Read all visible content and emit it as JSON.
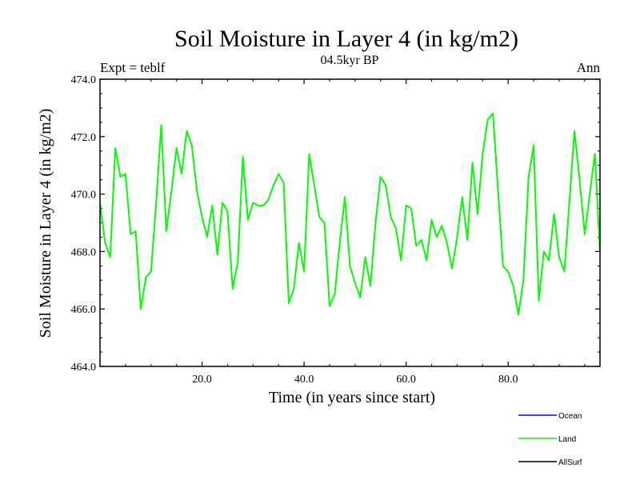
{
  "chart_data": {
    "type": "line",
    "title": "Soil Moisture in Layer 4 (in kg/m2)",
    "subtitle": "04.5kyr BP",
    "left_label": "Expt = teblf",
    "right_label": "Ann",
    "xlabel": "Time (in years since start)",
    "ylabel": "Soil Moisture in Layer 4 (in kg/m2)",
    "xlim": [
      0,
      98
    ],
    "ylim": [
      464.0,
      474.0
    ],
    "x_ticks": [
      20,
      40,
      60,
      80
    ],
    "x_tick_labels": [
      "20.0",
      "40.0",
      "60.0",
      "80.0"
    ],
    "y_ticks": [
      464,
      466,
      468,
      470,
      472,
      474
    ],
    "y_tick_labels": [
      "464.0",
      "466.0",
      "468.0",
      "470.0",
      "472.0",
      "474.0"
    ],
    "legend_placement": "bottom-right",
    "legend": [
      {
        "name": "Ocean",
        "color": "#0000ff"
      },
      {
        "name": "Land",
        "color": "#00ff00"
      },
      {
        "name": "AllSurf",
        "color": "#000000"
      }
    ],
    "series": [
      {
        "name": "Land",
        "color": "#00ff00",
        "x": [
          0,
          1,
          2,
          3,
          4,
          5,
          6,
          7,
          8,
          9,
          10,
          11,
          12,
          13,
          14,
          15,
          16,
          17,
          18,
          19,
          20,
          21,
          22,
          23,
          24,
          25,
          26,
          27,
          28,
          29,
          30,
          31,
          32,
          33,
          34,
          35,
          36,
          37,
          38,
          39,
          40,
          41,
          42,
          43,
          44,
          45,
          46,
          47,
          48,
          49,
          50,
          51,
          52,
          53,
          54,
          55,
          56,
          57,
          58,
          59,
          60,
          61,
          62,
          63,
          64,
          65,
          66,
          67,
          68,
          69,
          70,
          71,
          72,
          73,
          74,
          75,
          76,
          77,
          78,
          79,
          80,
          81,
          82,
          83,
          84,
          85,
          86,
          87,
          88,
          89,
          90,
          91,
          92,
          93,
          94,
          95,
          96,
          97,
          98
        ],
        "values": [
          469.7,
          468.3,
          467.8,
          471.6,
          470.6,
          470.7,
          468.6,
          468.7,
          466.0,
          467.1,
          467.3,
          469.7,
          472.4,
          468.7,
          470.1,
          471.6,
          470.7,
          472.2,
          471.7,
          470.1,
          469.2,
          468.5,
          469.6,
          467.9,
          469.7,
          469.4,
          466.7,
          467.6,
          471.3,
          469.1,
          469.7,
          469.6,
          469.6,
          469.8,
          470.3,
          470.7,
          470.4,
          466.2,
          466.7,
          468.3,
          467.3,
          471.4,
          470.3,
          469.2,
          469.0,
          466.1,
          466.5,
          468.3,
          469.9,
          467.5,
          466.9,
          466.4,
          467.8,
          466.8,
          469.0,
          470.6,
          470.3,
          469.2,
          468.8,
          467.7,
          469.6,
          469.5,
          468.2,
          468.4,
          467.7,
          469.1,
          468.5,
          468.9,
          468.3,
          467.4,
          468.5,
          469.9,
          468.4,
          471.1,
          469.3,
          471.4,
          472.6,
          472.8,
          470.2,
          467.5,
          467.3,
          466.8,
          465.8,
          467.0,
          470.6,
          471.7,
          466.3,
          468.0,
          467.7,
          469.3,
          467.8,
          467.3,
          469.7,
          472.2,
          470.5,
          468.6,
          470.0,
          471.4,
          468.0
        ]
      }
    ]
  }
}
